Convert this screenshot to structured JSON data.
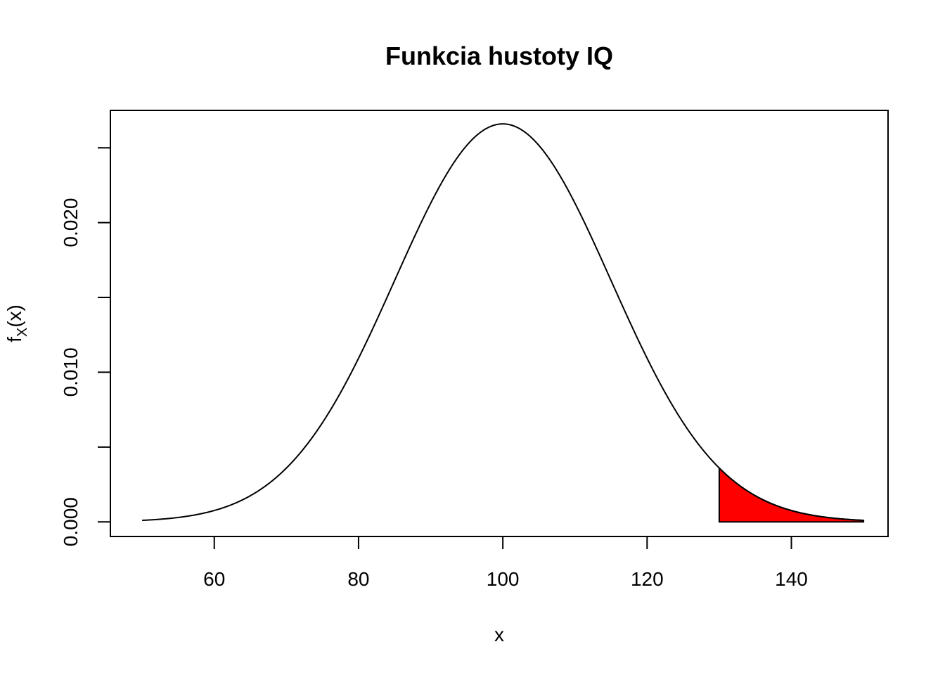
{
  "chart_data": {
    "type": "area",
    "title": "Funkcia hustoty IQ",
    "xlabel": "x",
    "ylabel": {
      "main": "f",
      "sub": "X",
      "rest": "(x)"
    },
    "xlim": [
      45.6,
      153.4
    ],
    "ylim": [
      -0.000976,
      0.0275
    ],
    "x_ticks": [
      60,
      80,
      100,
      120,
      140
    ],
    "x_tick_labels": [
      "60",
      "80",
      "100",
      "120",
      "140"
    ],
    "y_ticks": [
      0.0,
      0.005,
      0.01,
      0.015,
      0.02,
      0.025
    ],
    "y_tick_labels": [
      "0.000",
      "",
      "0.010",
      "",
      "0.020",
      ""
    ],
    "series": [
      {
        "kind": "normal-density-curve",
        "mean": 100,
        "sd": 15,
        "x_range": [
          50,
          150
        ],
        "color": "#000000"
      },
      {
        "kind": "shaded-tail",
        "x_range": [
          130,
          150
        ],
        "fill": "#ff0000",
        "stroke": "#000000"
      }
    ],
    "grid": false,
    "legend": "none"
  }
}
